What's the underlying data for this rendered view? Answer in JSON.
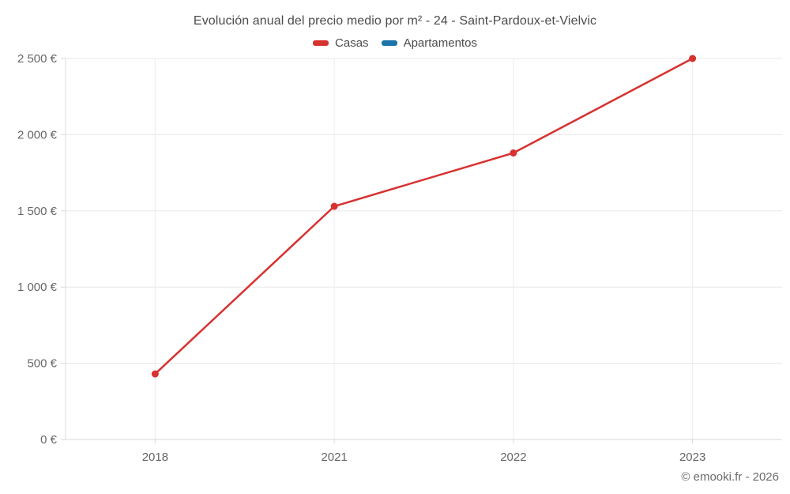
{
  "chart_data": {
    "type": "line",
    "title": "Evolución anual del precio medio por m² - 24 - Saint-Pardoux-et-Vielvic",
    "categories": [
      "2018",
      "2021",
      "2022",
      "2023"
    ],
    "series": [
      {
        "name": "Casas",
        "color": "#d73230",
        "values": [
          430,
          1530,
          1880,
          2500
        ]
      },
      {
        "name": "Apartamentos",
        "color": "#1b74a8",
        "values": []
      }
    ],
    "xlabel": "",
    "ylabel": "",
    "ylim": [
      0,
      2500
    ],
    "ytick_values": [
      0,
      500,
      1000,
      1500,
      2000,
      2500
    ],
    "ytick_labels": [
      "0 €",
      "500 €",
      "1 000 €",
      "1 500 €",
      "2 000 €",
      "2 500 €"
    ],
    "grid": true,
    "legend_position": "top-center",
    "currency_suffix": "€"
  },
  "footer": {
    "copyright": "© emooki.fr - 2026"
  },
  "colors": {
    "casas": "#d73230",
    "apartamentos": "#1b74a8",
    "gridline_horizontal": "#e7e7e7",
    "gridline_vertical": "#ececec",
    "axis": "#d9d9d9",
    "tick_label": "#666666",
    "title_text": "#4b4b4b"
  }
}
